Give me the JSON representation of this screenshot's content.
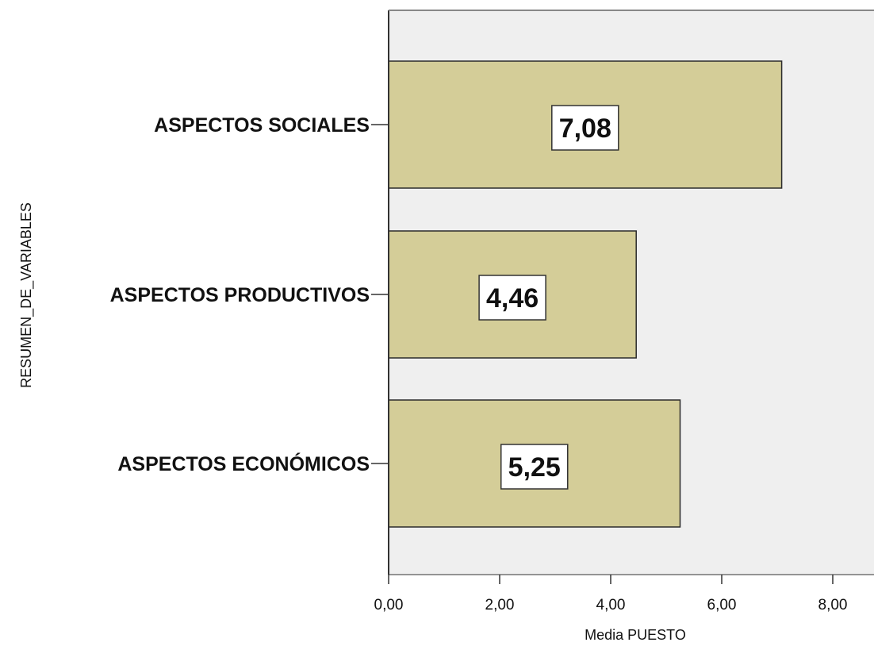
{
  "chart_data": {
    "type": "bar",
    "orientation": "horizontal",
    "categories": [
      "ASPECTOS SOCIALES",
      "ASPECTOS PRODUCTIVOS",
      "ASPECTOS ECONÓMICOS"
    ],
    "values": [
      7.08,
      4.46,
      5.25
    ],
    "value_labels": [
      "7,08",
      "4,46",
      "5,25"
    ],
    "xlabel": "Media PUESTO",
    "ylabel": "RESUMEN_DE_VARIABLES",
    "xlim": [
      0,
      8.7
    ],
    "x_ticks": [
      0,
      2,
      4,
      6,
      8
    ],
    "x_tick_labels": [
      "0,00",
      "2,00",
      "4,00",
      "6,00",
      "8,00"
    ],
    "grid": false,
    "colors": {
      "bar_fill": "#d4cd98",
      "bar_stroke": "#2b2b2b",
      "plot_background": "#efefef",
      "axis": "#333333"
    }
  }
}
